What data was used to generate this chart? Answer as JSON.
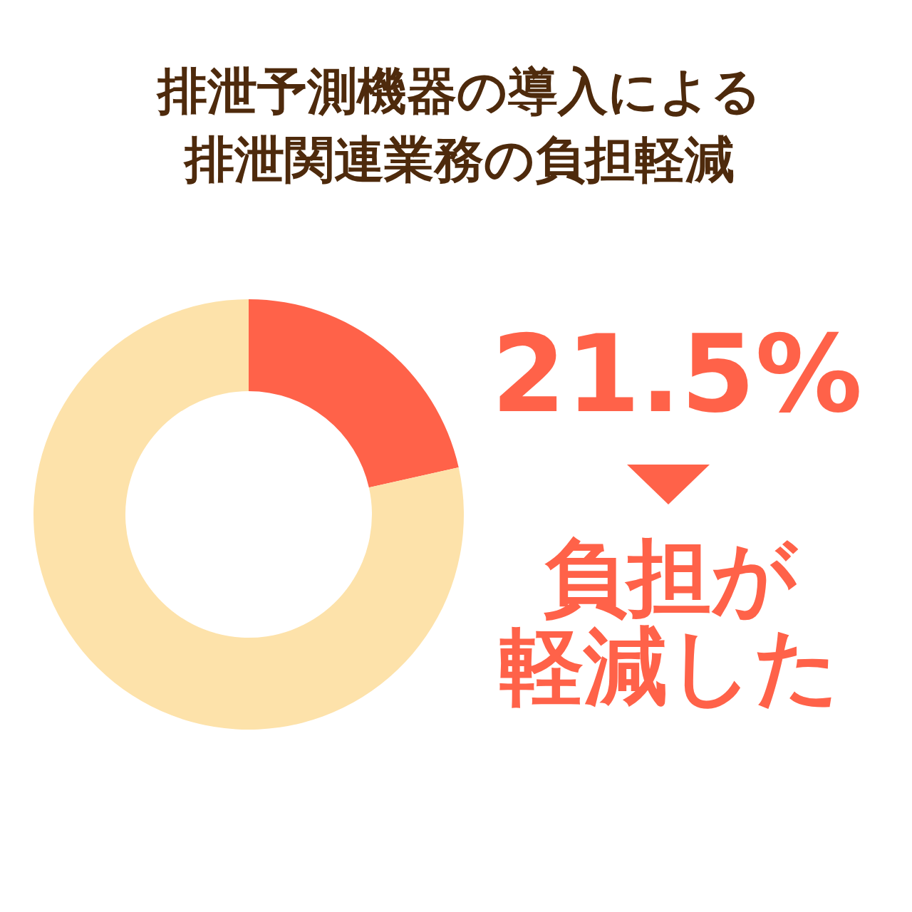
{
  "chart_data": {
    "type": "donut",
    "title": "排泄予測機器の導入による排泄関連業務の負担軽減",
    "categories": [
      null,
      null
    ],
    "values": [
      21.5,
      78.5
    ],
    "colors": [
      "#ff6249",
      "#fde2aa"
    ],
    "value_labels": [
      "21.5%",
      null
    ],
    "annotations": [
      "負担が",
      "軽減した"
    ]
  }
}
